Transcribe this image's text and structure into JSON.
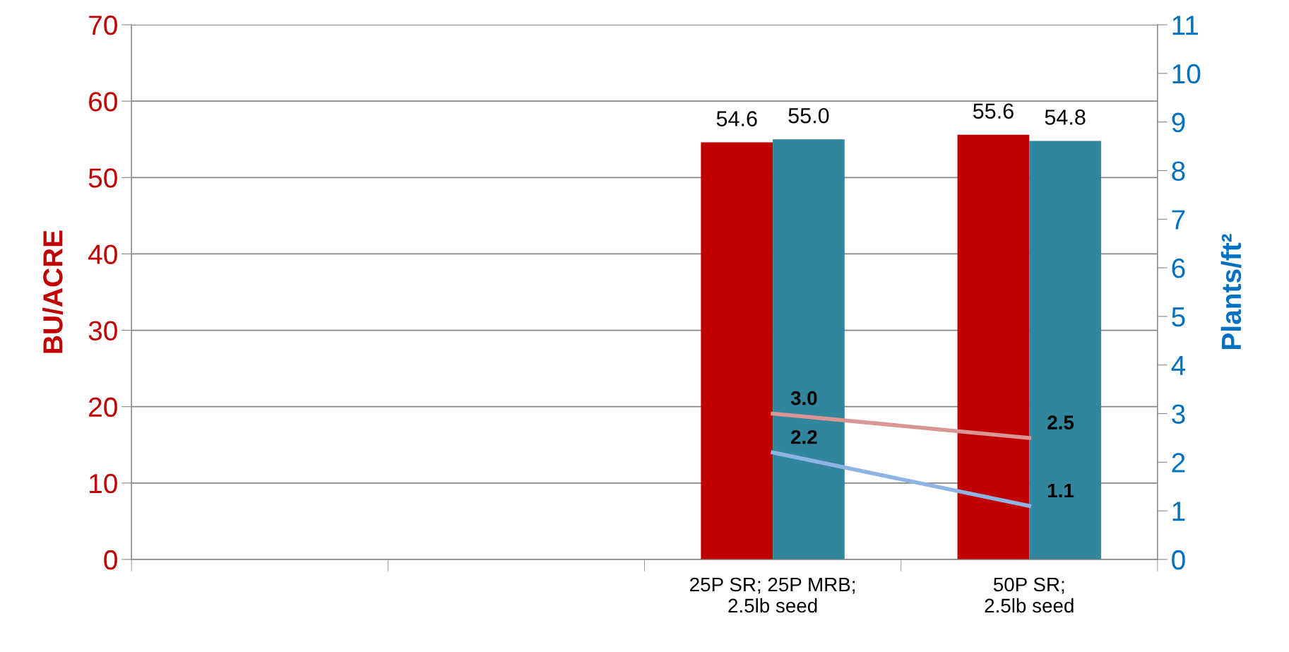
{
  "chart_data": {
    "type": "bar",
    "ylabel": "BU/ACRE",
    "y2label": "Plants/ft²",
    "categories": [
      null,
      null,
      "25P SR; 25P MRB;\n2.5lb seed",
      "50P SR;\n2.5lb seed"
    ],
    "series": [
      {
        "color": "#c00000",
        "values": [
          null,
          null,
          54.6,
          55.6
        ],
        "value_labels": [
          null,
          null,
          "54.6",
          "55.6"
        ]
      },
      {
        "color": "#31859c",
        "values": [
          null,
          null,
          55.0,
          54.8
        ],
        "value_labels": [
          null,
          null,
          "55.0",
          "54.8"
        ]
      },
      {
        "type": "line",
        "axis": "y2",
        "color": "#d99694",
        "values": [
          null,
          null,
          3.0,
          2.5
        ],
        "value_labels": [
          null,
          null,
          "3.0",
          "2.5"
        ]
      },
      {
        "type": "line",
        "axis": "y2",
        "color": "#8db4e2",
        "values": [
          null,
          null,
          2.2,
          1.1
        ],
        "value_labels": [
          null,
          null,
          "2.2",
          "1.1"
        ]
      }
    ],
    "ylim": [
      0,
      70
    ],
    "yticks": [
      0,
      10,
      20,
      30,
      40,
      50,
      60,
      70
    ],
    "y2lim": [
      0,
      11
    ],
    "y2ticks": [
      0,
      1,
      2,
      3,
      4,
      5,
      6,
      7,
      8,
      9,
      10,
      11
    ],
    "grid": "y",
    "marker": "none",
    "line_style": "solid"
  }
}
